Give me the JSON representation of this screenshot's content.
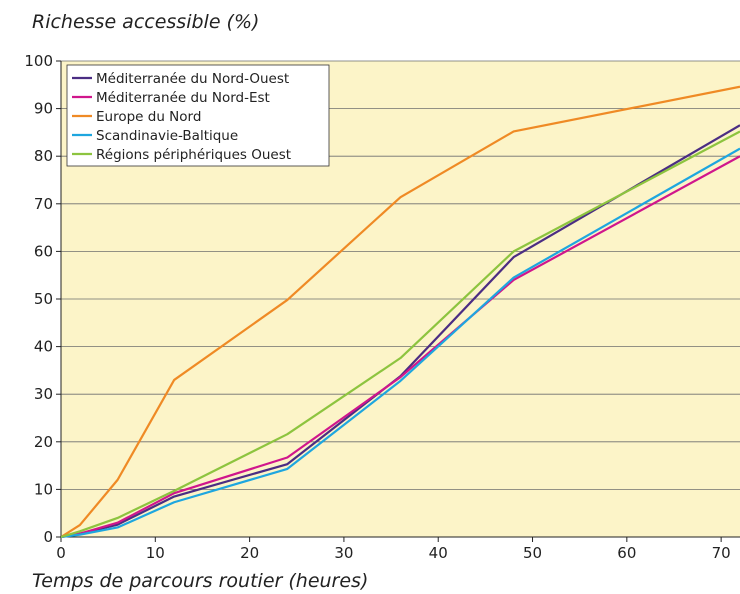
{
  "chart_data": {
    "type": "line",
    "title": "",
    "ylabel": "Richesse accessible (%)",
    "xlabel": "Temps de parcours routier (heures)",
    "xlim": [
      0,
      72
    ],
    "ylim": [
      0,
      100
    ],
    "x_ticks": [
      0,
      10,
      20,
      30,
      40,
      50,
      60,
      70
    ],
    "y_ticks": [
      0,
      10,
      20,
      30,
      40,
      50,
      60,
      70,
      80,
      90,
      100
    ],
    "grid": "horizontal",
    "legend_position": "top-left",
    "plot_background": "#fcf4c8",
    "series": [
      {
        "name": "Méditerranée du Nord-Ouest",
        "color": "#4b2d83",
        "points": [
          [
            0,
            0
          ],
          [
            2,
            0.7
          ],
          [
            6,
            2.6
          ],
          [
            12,
            8.5
          ],
          [
            24,
            15.3
          ],
          [
            36,
            33.8
          ],
          [
            48,
            58.8
          ],
          [
            72,
            86.5
          ]
        ]
      },
      {
        "name": "Méditerranée du Nord-Est",
        "color": "#d0168c",
        "points": [
          [
            0,
            0
          ],
          [
            2,
            0.7
          ],
          [
            6,
            3
          ],
          [
            12,
            9.2
          ],
          [
            24,
            16.7
          ],
          [
            36,
            33.6
          ],
          [
            48,
            54
          ],
          [
            72,
            80
          ]
        ]
      },
      {
        "name": "Europe du Nord",
        "color": "#ef8a25",
        "points": [
          [
            0,
            0
          ],
          [
            2,
            2.5
          ],
          [
            6,
            12
          ],
          [
            12,
            33
          ],
          [
            24,
            49.8
          ],
          [
            36,
            71.4
          ],
          [
            48,
            85.2
          ],
          [
            72,
            94.6
          ]
        ]
      },
      {
        "name": "Scandinavie-Baltique",
        "color": "#1ea6df",
        "points": [
          [
            0,
            0
          ],
          [
            2,
            0.5
          ],
          [
            6,
            2
          ],
          [
            12,
            7.3
          ],
          [
            24,
            14.3
          ],
          [
            36,
            32.8
          ],
          [
            48,
            54.5
          ],
          [
            72,
            81.6
          ]
        ]
      },
      {
        "name": "Régions périphériques Ouest",
        "color": "#8dc43f",
        "points": [
          [
            0,
            0
          ],
          [
            2,
            1.2
          ],
          [
            6,
            4
          ],
          [
            12,
            9.7
          ],
          [
            24,
            21.6
          ],
          [
            36,
            37.6
          ],
          [
            48,
            60
          ],
          [
            72,
            85.2
          ]
        ]
      }
    ]
  }
}
